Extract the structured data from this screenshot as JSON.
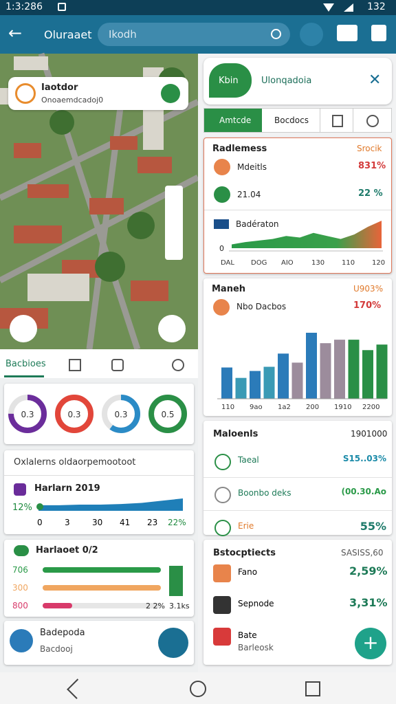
{
  "status_bar": {
    "time": "1:3:286",
    "battery": "132"
  },
  "app_bar": {
    "title": "Oluraaet",
    "search": "Ikodh"
  },
  "map_card": {
    "title": "Iaotdor",
    "subtitle": "Onoaemdcadoj0"
  },
  "left_tabs": {
    "active": "Bacbioes"
  },
  "donuts": [
    {
      "label": "0.3",
      "value": 75,
      "color": "#6b2d9b"
    },
    {
      "label": "0.3",
      "value": 100,
      "color": "#e2463a"
    },
    {
      "label": "0.3",
      "value": 60,
      "color": "#2b8bc6"
    },
    {
      "label": "0.5",
      "value": 100,
      "color": "#2a8f46"
    }
  ],
  "overview_card": {
    "title": "Oxlalerns oldaorpemootoot",
    "row_title": "Harlarn 2019",
    "start": "12%",
    "trend": [
      10,
      10,
      11,
      11,
      12,
      14,
      18,
      22
    ],
    "ticks": [
      "0",
      "3",
      "30",
      "41",
      "23"
    ],
    "end": "22%"
  },
  "progress_card": {
    "title": "Harlaoet 0/2",
    "rows": [
      {
        "label": "706",
        "value": 100,
        "color": "#2a9a48"
      },
      {
        "label": "300",
        "value": 100,
        "color": "#f0a660"
      },
      {
        "label": "800",
        "value": 25,
        "color": "#d83a6a"
      }
    ],
    "note": "2 2%",
    "side": "3.1ks"
  },
  "bottom_left_card": {
    "title": "Badepoda",
    "subtitle": "Bacdooj"
  },
  "right_header": {
    "badge": "Kbin",
    "title": "Ulonqadoia"
  },
  "right_tabs": [
    "Amtcde",
    "Bocdocs"
  ],
  "radiness_card": {
    "title": "Radlemess",
    "aside": "Srocik",
    "rows": [
      {
        "label": "Mdeitls",
        "value": "831%"
      },
      {
        "label": "21.04",
        "value": "22 %"
      }
    ],
    "chart_title": "Badératon",
    "y_label": "0",
    "area": [
      5,
      8,
      10,
      12,
      16,
      14,
      20,
      16,
      12,
      18,
      28,
      36
    ],
    "x_labels": [
      "DAL",
      "DOG",
      "AIO",
      "130",
      "110",
      "120"
    ]
  },
  "market_card": {
    "title": "Maneh",
    "aside": "U903%",
    "subtitle": "Nbo Dacbos",
    "sub_value": "170%",
    "bars": [
      45,
      30,
      40,
      46,
      65,
      52,
      95,
      80,
      85,
      85,
      70,
      78
    ],
    "bar_colors": [
      "#2b7bb9",
      "#3a9ab5",
      "#2b7bb9",
      "#3a9ab5",
      "#2b7bb9",
      "#9c8c9c",
      "#2b7bb9",
      "#9c8c9c",
      "#9c8c9c",
      "#2a8f46",
      "#2a8f46",
      "#2a8f46"
    ],
    "x_labels": [
      "110",
      "9ao",
      "1a2",
      "200",
      "1910",
      "2200"
    ]
  },
  "materials_card": {
    "title": "Maloenls",
    "aside": "1901000",
    "rows": [
      {
        "label": "Taeal",
        "value": "S15..03%"
      },
      {
        "label": "Boonbo deks",
        "value": "(00.30.Ao"
      },
      {
        "label": "Erie",
        "value": "55%"
      }
    ]
  },
  "stocks_card": {
    "title": "Bstocptiects",
    "aside": "SASISS,60",
    "rows": [
      {
        "label": "Fano",
        "value": "2,59%"
      },
      {
        "label": "Sepnode",
        "value": "3,31%"
      },
      {
        "label": "Bate",
        "sub": "Barleosk"
      }
    ]
  }
}
